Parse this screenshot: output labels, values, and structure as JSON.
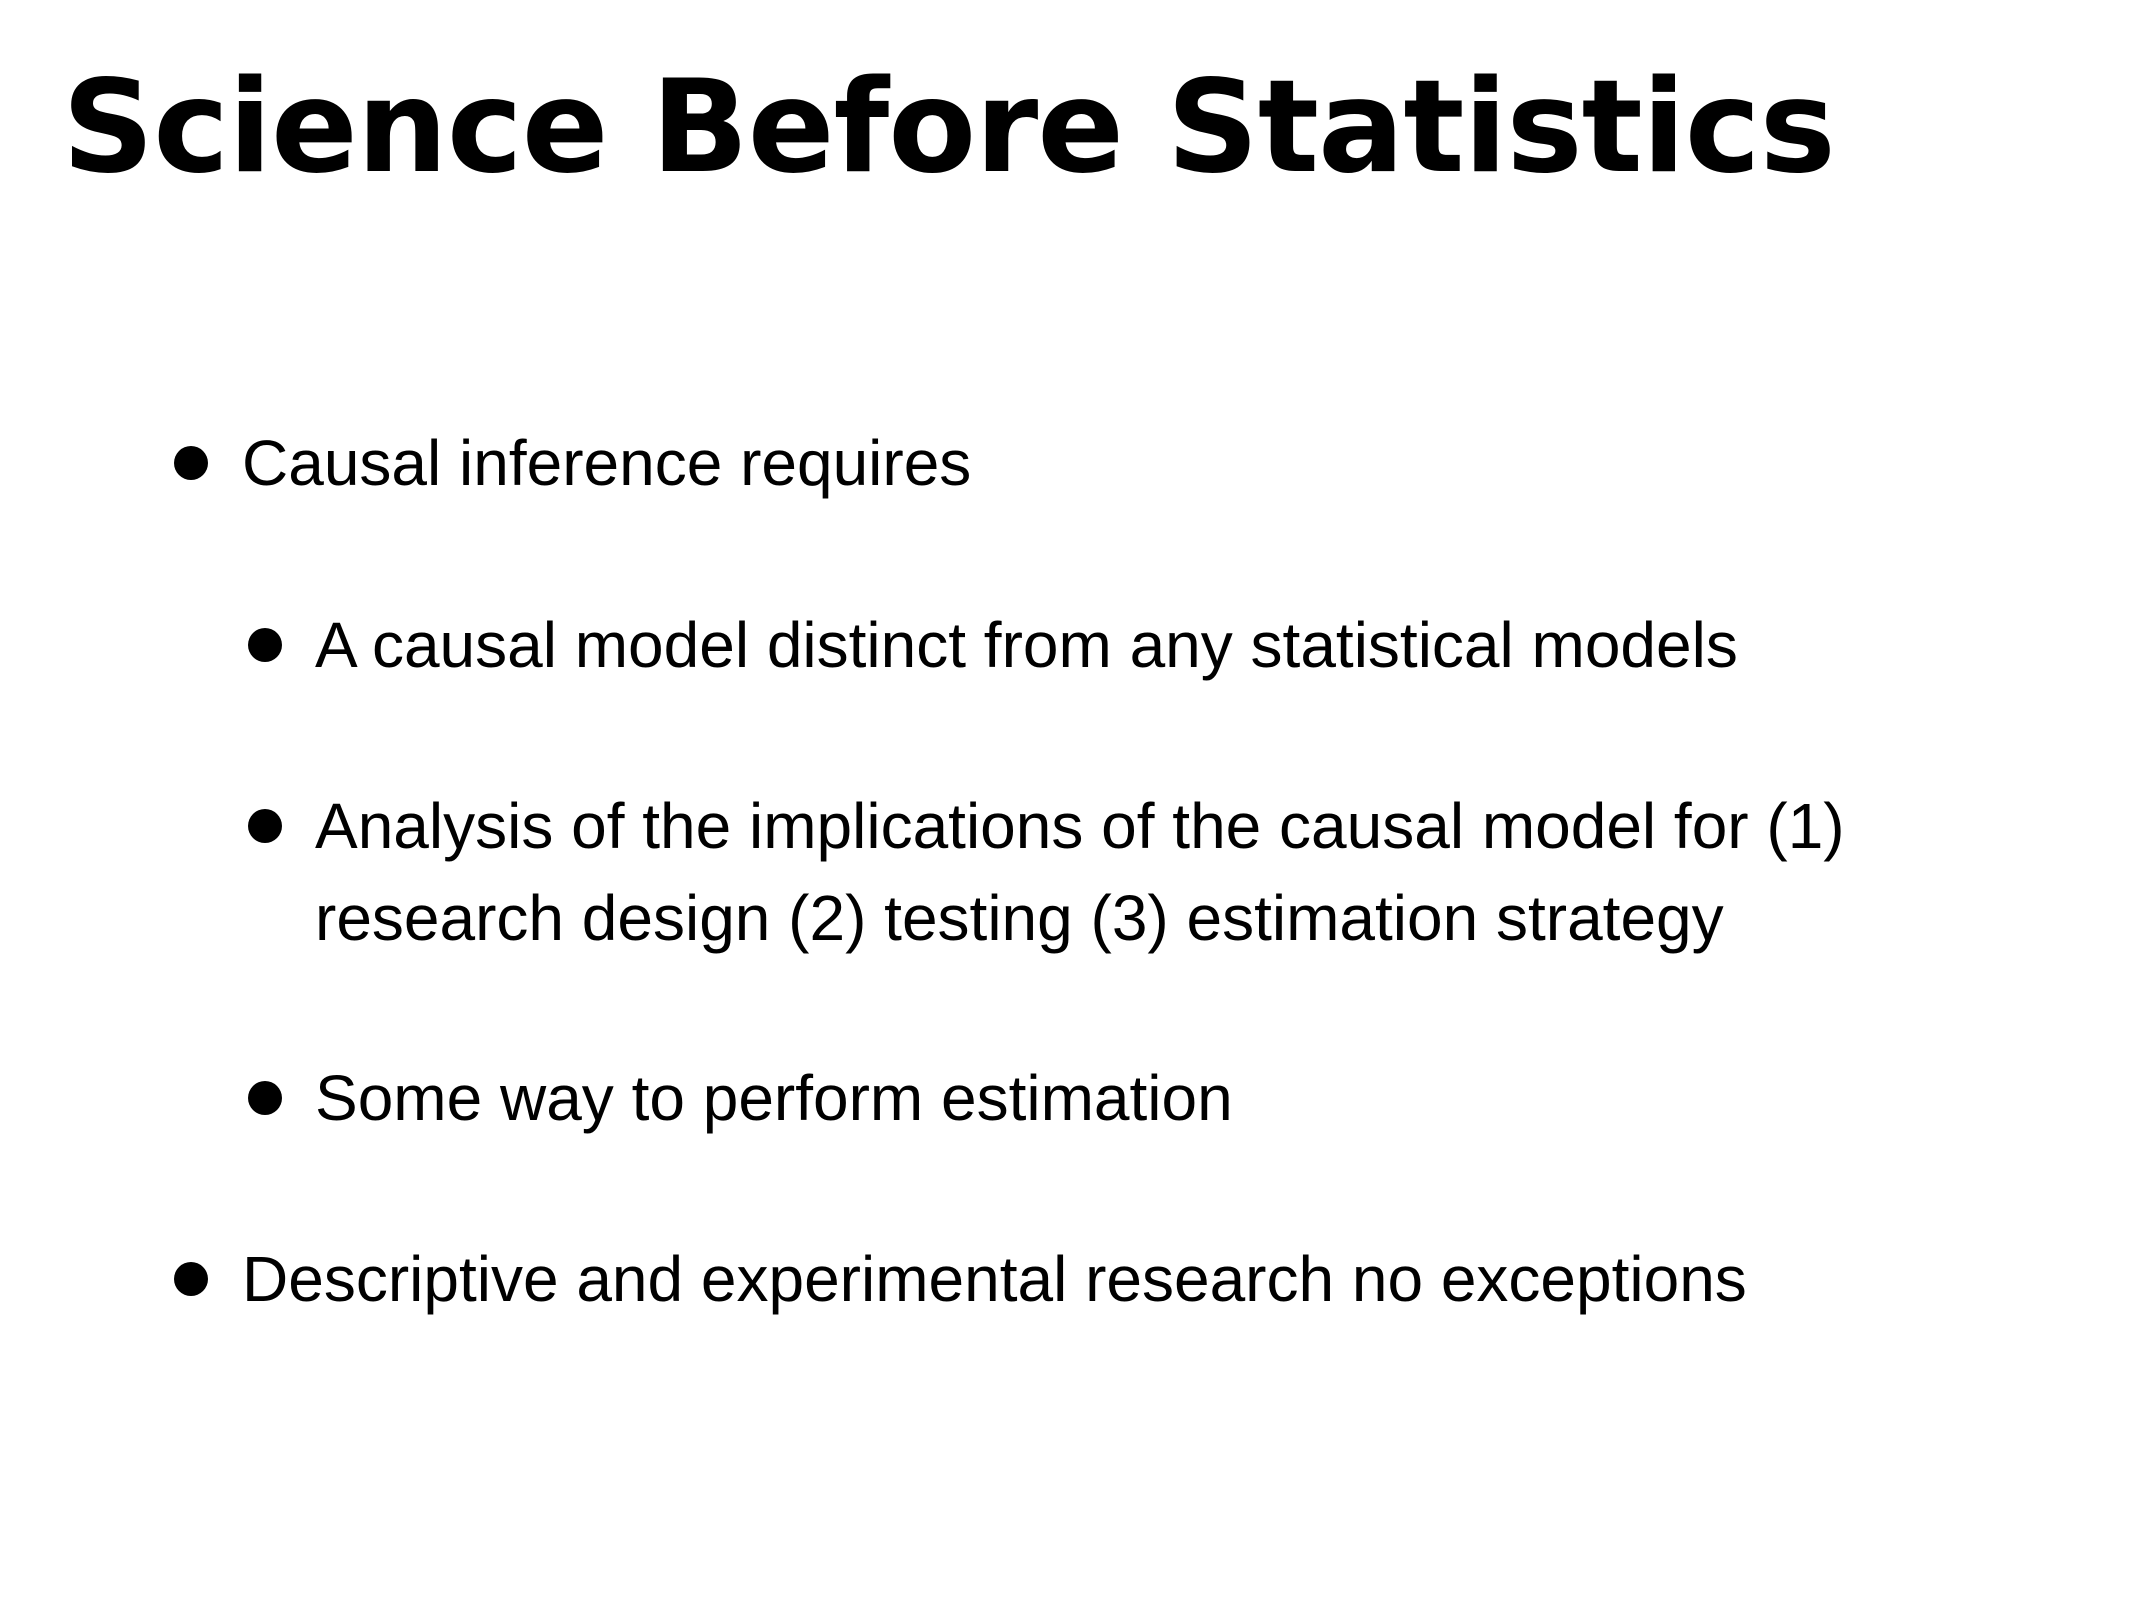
{
  "slide": {
    "title": "Science Before Statistics",
    "bullets": [
      {
        "level": 1,
        "lines": [
          "Causal inference requires"
        ]
      },
      {
        "level": 2,
        "lines": [
          "A causal model distinct from any statistical models"
        ]
      },
      {
        "level": 2,
        "lines": [
          "Analysis of the implications of the causal model for (1)",
          "research design (2) testing (3) estimation strategy"
        ]
      },
      {
        "level": 2,
        "lines": [
          "Some way to perform estimation"
        ]
      },
      {
        "level": 1,
        "lines": [
          "Descriptive and experimental research no exceptions"
        ]
      }
    ]
  }
}
